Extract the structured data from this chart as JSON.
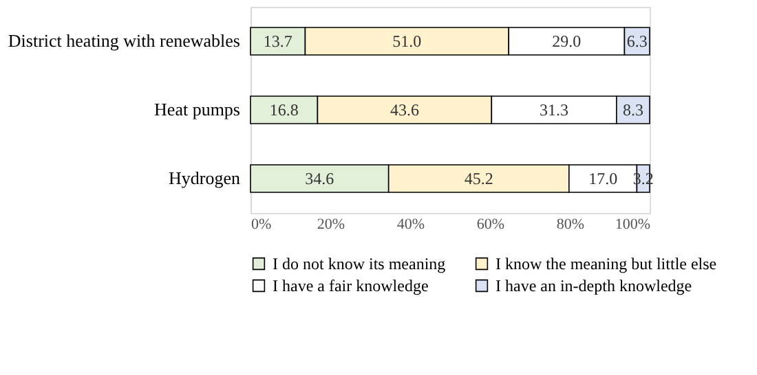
{
  "chart_data": {
    "type": "bar",
    "orientation": "horizontal",
    "stacked": true,
    "legend": "bottom",
    "grid": false,
    "categories": [
      "District heating with renewables",
      "Heat pumps",
      "Hydrogen"
    ],
    "series": [
      {
        "name": "I do not know its meaning",
        "color": "#e2f0d9",
        "values": [
          13.7,
          16.8,
          34.6
        ],
        "value_labels": [
          "13.7",
          "16.8",
          "34.6"
        ]
      },
      {
        "name": "I know the meaning but little else",
        "color": "#fff2cc",
        "values": [
          51.0,
          43.6,
          45.2
        ],
        "value_labels": [
          "51.0",
          "43.6",
          "45.2"
        ]
      },
      {
        "name": "I have a fair knowledge",
        "color": "#ffffff",
        "values": [
          29.0,
          31.3,
          17.0
        ],
        "value_labels": [
          "29.0",
          "31.3",
          "17.0"
        ]
      },
      {
        "name": "I have an in-depth knowledge",
        "color": "#dae3f3",
        "values": [
          6.3,
          8.3,
          3.2
        ],
        "value_labels": [
          "6.3",
          "8.3",
          "3.2"
        ]
      }
    ],
    "xlim": [
      0,
      100
    ],
    "xticks": [
      {
        "value": 0,
        "label": "0%"
      },
      {
        "value": 20,
        "label": "20%"
      },
      {
        "value": 40,
        "label": "40%"
      },
      {
        "value": 60,
        "label": "60%"
      },
      {
        "value": 80,
        "label": "80%"
      },
      {
        "value": 100,
        "label": "100%"
      }
    ]
  }
}
